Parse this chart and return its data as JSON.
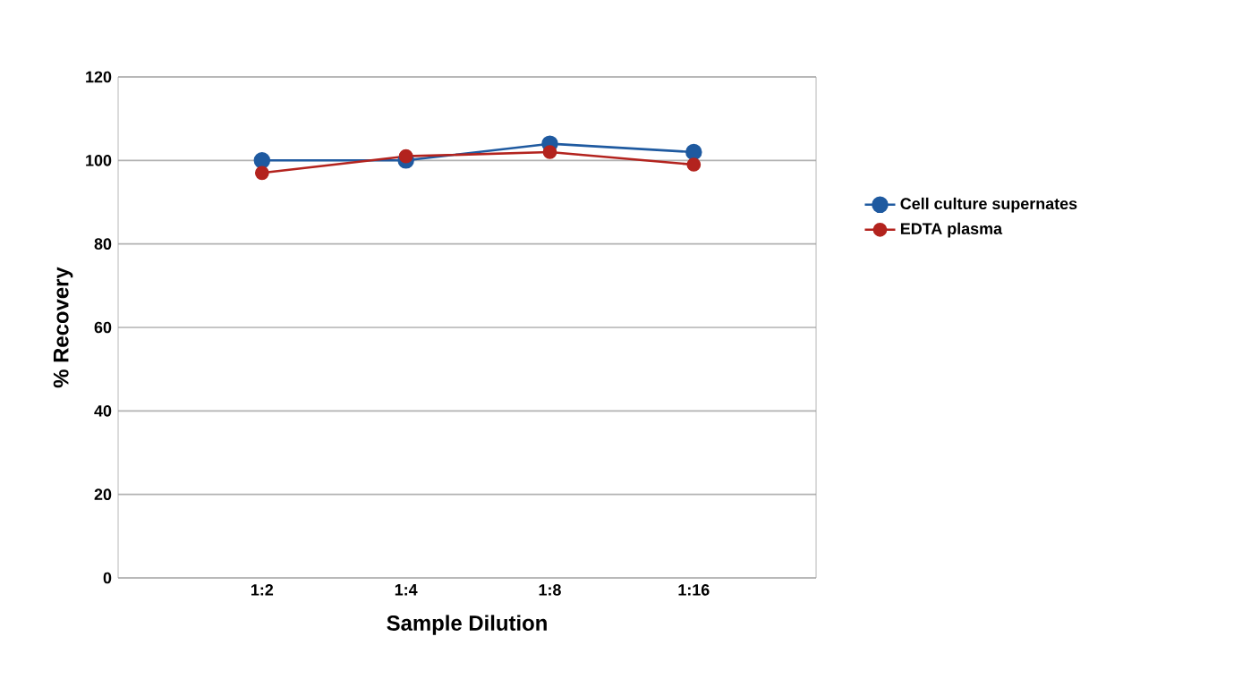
{
  "chart_data": {
    "type": "line",
    "xlabel": "Sample Dilution",
    "ylabel": "% Recovery",
    "categories": [
      "1:2",
      "1:4",
      "1:8",
      "1:16"
    ],
    "series": [
      {
        "name": "Cell culture supernates",
        "color": "#1f5aa0",
        "values": [
          100,
          100,
          104,
          102
        ]
      },
      {
        "name": "EDTA plasma",
        "color": "#b3231e",
        "values": [
          97,
          101,
          102,
          99
        ]
      }
    ],
    "ylim": [
      0,
      120
    ],
    "yticks": [
      0,
      20,
      40,
      60,
      80,
      100,
      120
    ],
    "grid": "y",
    "legend": "right",
    "marker": "circle",
    "line_style": "solid"
  }
}
